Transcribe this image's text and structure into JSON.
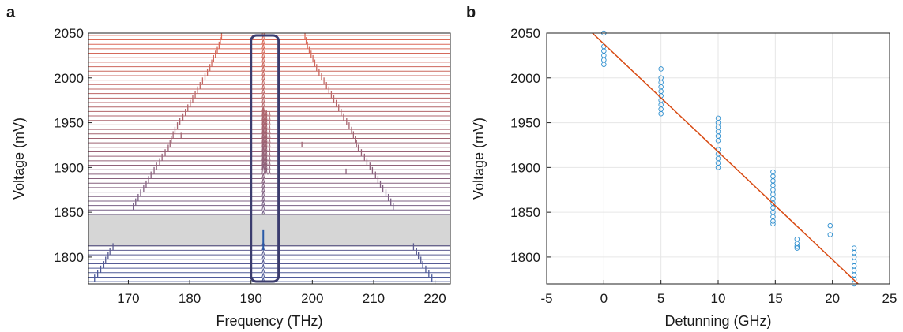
{
  "chart_data": [
    {
      "panel_label": "a",
      "type": "line",
      "xlabel": "Frequency (THz)",
      "ylabel": "Voltage (mV)",
      "xlim": [
        163.5,
        222.5
      ],
      "ylim": [
        1770,
        2050
      ],
      "xticks": [
        170,
        180,
        190,
        200,
        210,
        220
      ],
      "yticks": [
        1800,
        1850,
        1900,
        1950,
        2000,
        2050
      ],
      "grid": false,
      "voltage_start": 1772.5,
      "voltage_step": 5,
      "voltage_count": 56,
      "gap_voltage_range": [
        1812.5,
        1847.5
      ],
      "pump_frequency": 192,
      "highlight_box_frequency": [
        190,
        194.5
      ],
      "left_sideband": [
        {
          "v": 1772.5,
          "f": 164.5
        },
        {
          "v": 1777.5,
          "f": 165
        },
        {
          "v": 1782.5,
          "f": 165.5
        },
        {
          "v": 1787.5,
          "f": 166
        },
        {
          "v": 1792.5,
          "f": 166.3
        },
        {
          "v": 1797.5,
          "f": 166.7
        },
        {
          "v": 1802.5,
          "f": 167
        },
        {
          "v": 1807.5,
          "f": 167.5
        },
        {
          "v": 1852.5,
          "f": 170.8
        },
        {
          "v": 1857.5,
          "f": 171.2
        },
        {
          "v": 1862.5,
          "f": 171.6
        },
        {
          "v": 1867.5,
          "f": 172
        },
        {
          "v": 1872.5,
          "f": 172.5
        },
        {
          "v": 1877.5,
          "f": 172.9
        },
        {
          "v": 1882.5,
          "f": 173.3
        },
        {
          "v": 1887.5,
          "f": 173.7
        },
        {
          "v": 1892.5,
          "f": 174.2
        },
        {
          "v": 1897.5,
          "f": 174.6
        },
        {
          "v": 1902.5,
          "f": 175.1
        },
        {
          "v": 1907.5,
          "f": 175.5
        },
        {
          "v": 1912.5,
          "f": 176
        },
        {
          "v": 1917.5,
          "f": 176.5
        },
        {
          "v": 1922.5,
          "f": 176.8
        },
        {
          "v": 1927.5,
          "f": 177
        },
        {
          "v": 1932.5,
          "f": 177.3
        },
        {
          "v": 1937.5,
          "f": 177.6
        },
        {
          "v": 1942.5,
          "f": 178
        },
        {
          "v": 1947.5,
          "f": 178.4
        },
        {
          "v": 1952.5,
          "f": 178.9
        },
        {
          "v": 1957.5,
          "f": 179.3
        },
        {
          "v": 1962.5,
          "f": 179.7
        },
        {
          "v": 1967.5,
          "f": 180.1
        },
        {
          "v": 1972.5,
          "f": 180.5
        },
        {
          "v": 1977.5,
          "f": 180.9
        },
        {
          "v": 1982.5,
          "f": 181.3
        },
        {
          "v": 1987.5,
          "f": 181.7
        },
        {
          "v": 1992.5,
          "f": 182.1
        },
        {
          "v": 1997.5,
          "f": 182.5
        },
        {
          "v": 2002.5,
          "f": 182.9
        },
        {
          "v": 2007.5,
          "f": 183.3
        },
        {
          "v": 2012.5,
          "f": 183.6
        },
        {
          "v": 2017.5,
          "f": 183.9
        },
        {
          "v": 2022.5,
          "f": 184.2
        },
        {
          "v": 2027.5,
          "f": 184.5
        },
        {
          "v": 2032.5,
          "f": 184.8
        },
        {
          "v": 2037.5,
          "f": 185
        },
        {
          "v": 2042.5,
          "f": 185.2
        }
      ],
      "right_sideband": [
        {
          "v": 1772.5,
          "f": 219.5
        },
        {
          "v": 1777.5,
          "f": 219
        },
        {
          "v": 1782.5,
          "f": 218.5
        },
        {
          "v": 1787.5,
          "f": 218
        },
        {
          "v": 1792.5,
          "f": 217.7
        },
        {
          "v": 1797.5,
          "f": 217.3
        },
        {
          "v": 1802.5,
          "f": 217
        },
        {
          "v": 1807.5,
          "f": 216.5
        },
        {
          "v": 1852.5,
          "f": 213.2
        },
        {
          "v": 1857.5,
          "f": 212.8
        },
        {
          "v": 1862.5,
          "f": 212.4
        },
        {
          "v": 1867.5,
          "f": 212
        },
        {
          "v": 1872.5,
          "f": 211.5
        },
        {
          "v": 1877.5,
          "f": 211.1
        },
        {
          "v": 1882.5,
          "f": 210.7
        },
        {
          "v": 1887.5,
          "f": 210.3
        },
        {
          "v": 1892.5,
          "f": 209.8
        },
        {
          "v": 1897.5,
          "f": 209.4
        },
        {
          "v": 1902.5,
          "f": 208.9
        },
        {
          "v": 1907.5,
          "f": 208.5
        },
        {
          "v": 1912.5,
          "f": 208
        },
        {
          "v": 1917.5,
          "f": 207.5
        },
        {
          "v": 1922.5,
          "f": 207.2
        },
        {
          "v": 1927.5,
          "f": 207
        },
        {
          "v": 1932.5,
          "f": 206.7
        },
        {
          "v": 1937.5,
          "f": 206.4
        },
        {
          "v": 1942.5,
          "f": 206
        },
        {
          "v": 1947.5,
          "f": 205.6
        },
        {
          "v": 1952.5,
          "f": 205.1
        },
        {
          "v": 1957.5,
          "f": 204.7
        },
        {
          "v": 1962.5,
          "f": 204.3
        },
        {
          "v": 1967.5,
          "f": 203.9
        },
        {
          "v": 1972.5,
          "f": 203.5
        },
        {
          "v": 1977.5,
          "f": 203.1
        },
        {
          "v": 1982.5,
          "f": 202.7
        },
        {
          "v": 1987.5,
          "f": 202.3
        },
        {
          "v": 1992.5,
          "f": 201.9
        },
        {
          "v": 1997.5,
          "f": 201.5
        },
        {
          "v": 2002.5,
          "f": 201.1
        },
        {
          "v": 2007.5,
          "f": 200.7
        },
        {
          "v": 2012.5,
          "f": 200.4
        },
        {
          "v": 2017.5,
          "f": 200.1
        },
        {
          "v": 2022.5,
          "f": 199.8
        },
        {
          "v": 2027.5,
          "f": 199.5
        },
        {
          "v": 2032.5,
          "f": 199.2
        },
        {
          "v": 2037.5,
          "f": 199
        },
        {
          "v": 2042.5,
          "f": 198.8
        }
      ],
      "isolated_peaks": [
        {
          "v": 1892.5,
          "f": 205.5
        },
        {
          "v": 1922.5,
          "f": 198.3
        },
        {
          "v": 1932.5,
          "f": 178.6
        }
      ],
      "colors": {
        "low": "#4a5a9a",
        "high": "#e06a55",
        "pump": "#2a5aa8",
        "box": "#3b3c6e",
        "gap": "#d6d6d6"
      }
    },
    {
      "panel_label": "b",
      "type": "scatter",
      "xlabel": "Detunning (GHz)",
      "ylabel": "Voltage (mV)",
      "xlim": [
        -5,
        25
      ],
      "ylim": [
        1770,
        2050
      ],
      "xticks": [
        -5,
        0,
        5,
        10,
        15,
        20,
        25
      ],
      "yticks": [
        1800,
        1850,
        1900,
        1950,
        2000,
        2050
      ],
      "grid": true,
      "points": [
        [
          0,
          2050
        ],
        [
          0,
          2035
        ],
        [
          0,
          2030
        ],
        [
          0,
          2025
        ],
        [
          0,
          2020
        ],
        [
          0,
          2015
        ],
        [
          5,
          2010
        ],
        [
          5,
          2000
        ],
        [
          5,
          1995
        ],
        [
          5,
          1990
        ],
        [
          5,
          1985
        ],
        [
          5,
          1980
        ],
        [
          5,
          1975
        ],
        [
          5,
          1970
        ],
        [
          5,
          1965
        ],
        [
          5,
          1960
        ],
        [
          10,
          1955
        ],
        [
          10,
          1950
        ],
        [
          10,
          1945
        ],
        [
          10,
          1940
        ],
        [
          10,
          1935
        ],
        [
          10,
          1930
        ],
        [
          10,
          1920
        ],
        [
          10,
          1915
        ],
        [
          10,
          1910
        ],
        [
          10,
          1905
        ],
        [
          10,
          1900
        ],
        [
          14.8,
          1895
        ],
        [
          14.8,
          1890
        ],
        [
          14.8,
          1885
        ],
        [
          14.8,
          1880
        ],
        [
          14.8,
          1875
        ],
        [
          14.8,
          1870
        ],
        [
          14.8,
          1865
        ],
        [
          14.8,
          1860
        ],
        [
          14.8,
          1855
        ],
        [
          14.8,
          1850
        ],
        [
          14.8,
          1845
        ],
        [
          14.8,
          1840
        ],
        [
          14.8,
          1837
        ],
        [
          16.9,
          1820
        ],
        [
          16.9,
          1815
        ],
        [
          16.9,
          1812
        ],
        [
          16.9,
          1810
        ],
        [
          19.8,
          1835
        ],
        [
          19.8,
          1825
        ],
        [
          21.9,
          1810
        ],
        [
          21.9,
          1805
        ],
        [
          21.9,
          1800
        ],
        [
          21.9,
          1795
        ],
        [
          21.9,
          1790
        ],
        [
          21.9,
          1785
        ],
        [
          21.9,
          1780
        ],
        [
          21.9,
          1775
        ],
        [
          21.9,
          1770
        ]
      ],
      "fit_line": {
        "x": [
          -1,
          22.5
        ],
        "y": [
          2050,
          1767
        ]
      },
      "colors": {
        "points": "#2e8fcf",
        "fit": "#d84a12",
        "grid": "#e6e6e6"
      }
    }
  ]
}
